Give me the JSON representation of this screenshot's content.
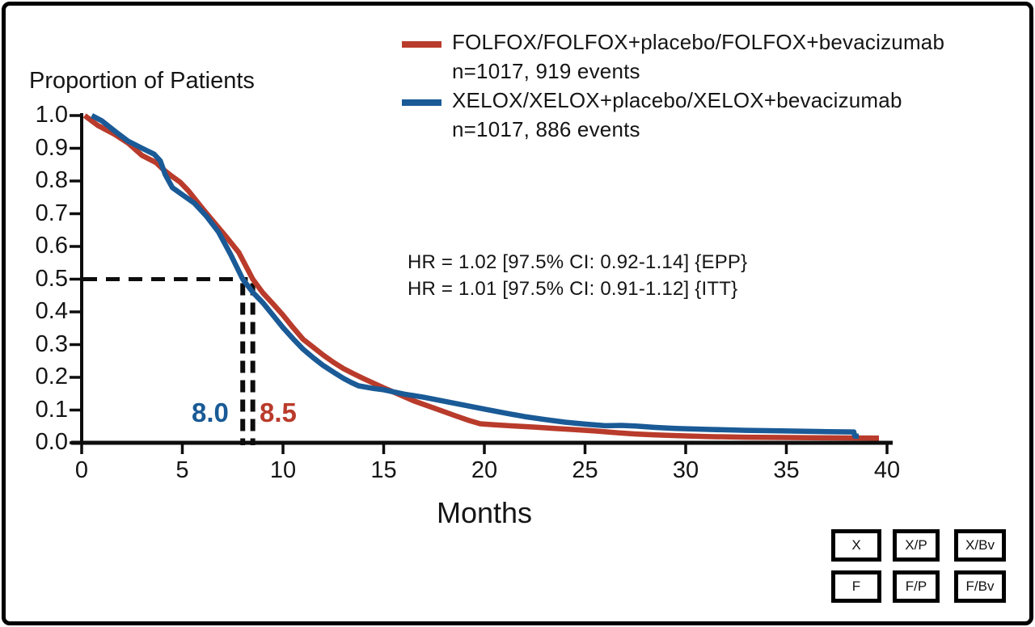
{
  "figure": {
    "y_axis_title": "Proportion of Patients",
    "x_axis_title": "Months"
  },
  "legend": {
    "items": [
      {
        "label": "FOLFOX/FOLFOX+placebo/FOLFOX+bevacizumab",
        "sub": "n=1017, 919 events",
        "color": "#b93b2b"
      },
      {
        "label": "XELOX/XELOX+placebo/XELOX+bevacizumab",
        "sub": "n=1017, 886 events",
        "color": "#1a5a96"
      }
    ]
  },
  "annotations": {
    "hr_line1": "HR = 1.02 [97.5% CI: 0.92-1.14] {EPP}",
    "hr_line2": "HR = 1.01 [97.5% CI: 0.91-1.12] {ITT}",
    "median_xelox": "8.0",
    "median_folfox": "8.5"
  },
  "treatment_boxes": {
    "row1": [
      "X",
      "X/P",
      "X/Bv"
    ],
    "row2": [
      "F",
      "F/P",
      "F/Bv"
    ]
  },
  "chart_data": {
    "type": "line",
    "subtype": "kaplan-meier-survival",
    "title": "Proportion of Patients vs Months",
    "xlabel": "Months",
    "ylabel": "Proportion of Patients",
    "xlim": [
      0,
      40
    ],
    "ylim": [
      0.0,
      1.0
    ],
    "x_ticks": [
      0,
      5,
      10,
      15,
      20,
      25,
      30,
      35,
      40
    ],
    "y_ticks": [
      "1.0",
      "0.9",
      "0.8",
      "0.7",
      "0.6",
      "0.5",
      "0.4",
      "0.3",
      "0.2",
      "0.1",
      "0.0"
    ],
    "grid": false,
    "legend_position": "top-right",
    "medians": {
      "y": 0.5,
      "xelox_months": 8.0,
      "folfox_months": 8.5
    },
    "series": [
      {
        "name": "FOLFOX/FOLFOX+placebo/FOLFOX+bevacizumab",
        "n": 1017,
        "events": 919,
        "color": "#b93b2b",
        "median_months": 8.5,
        "points": [
          [
            0.15,
            1.0
          ],
          [
            0.8,
            0.97
          ],
          [
            1.6,
            0.944
          ],
          [
            2.3,
            0.916
          ],
          [
            3.0,
            0.878
          ],
          [
            3.7,
            0.856
          ],
          [
            4.0,
            0.838
          ],
          [
            4.4,
            0.818
          ],
          [
            4.9,
            0.796
          ],
          [
            5.3,
            0.77
          ],
          [
            6.0,
            0.716
          ],
          [
            6.6,
            0.672
          ],
          [
            7.2,
            0.628
          ],
          [
            7.8,
            0.582
          ],
          [
            8.5,
            0.5
          ],
          [
            9.0,
            0.458
          ],
          [
            9.5,
            0.425
          ],
          [
            10.0,
            0.39
          ],
          [
            10.5,
            0.352
          ],
          [
            11.0,
            0.316
          ],
          [
            11.5,
            0.292
          ],
          [
            12.0,
            0.268
          ],
          [
            12.5,
            0.246
          ],
          [
            13.0,
            0.227
          ],
          [
            13.5,
            0.211
          ],
          [
            14.0,
            0.196
          ],
          [
            14.5,
            0.182
          ],
          [
            15.0,
            0.168
          ],
          [
            15.6,
            0.152
          ],
          [
            16.5,
            0.128
          ],
          [
            17.5,
            0.106
          ],
          [
            18.5,
            0.084
          ],
          [
            19.3,
            0.067
          ],
          [
            19.8,
            0.058
          ],
          [
            20.5,
            0.055
          ],
          [
            21.5,
            0.051
          ],
          [
            22.5,
            0.048
          ],
          [
            23.5,
            0.044
          ],
          [
            24.5,
            0.04
          ],
          [
            25.5,
            0.036
          ],
          [
            26.5,
            0.031
          ],
          [
            27.5,
            0.027
          ],
          [
            28.5,
            0.024
          ],
          [
            29.5,
            0.022
          ],
          [
            31.0,
            0.019
          ],
          [
            33.0,
            0.017
          ],
          [
            35.0,
            0.016
          ],
          [
            37.0,
            0.015
          ],
          [
            39.6,
            0.014
          ]
        ]
      },
      {
        "name": "XELOX/XELOX+placebo/XELOX+bevacizumab",
        "n": 1017,
        "events": 886,
        "color": "#1a5a96",
        "median_months": 8.0,
        "points": [
          [
            0.5,
            1.0
          ],
          [
            1.0,
            0.984
          ],
          [
            1.7,
            0.95
          ],
          [
            2.3,
            0.922
          ],
          [
            3.0,
            0.9
          ],
          [
            3.6,
            0.882
          ],
          [
            3.9,
            0.862
          ],
          [
            4.15,
            0.82
          ],
          [
            4.5,
            0.78
          ],
          [
            5.0,
            0.758
          ],
          [
            5.6,
            0.732
          ],
          [
            6.2,
            0.692
          ],
          [
            6.8,
            0.644
          ],
          [
            7.4,
            0.575
          ],
          [
            8.0,
            0.5
          ],
          [
            8.5,
            0.46
          ],
          [
            9.0,
            0.428
          ],
          [
            9.5,
            0.39
          ],
          [
            10.0,
            0.352
          ],
          [
            10.5,
            0.318
          ],
          [
            11.0,
            0.286
          ],
          [
            11.5,
            0.26
          ],
          [
            12.0,
            0.236
          ],
          [
            12.5,
            0.216
          ],
          [
            13.0,
            0.197
          ],
          [
            13.4,
            0.184
          ],
          [
            13.75,
            0.174
          ],
          [
            14.5,
            0.166
          ],
          [
            15.0,
            0.162
          ],
          [
            16.0,
            0.149
          ],
          [
            17.0,
            0.139
          ],
          [
            18.0,
            0.127
          ],
          [
            19.0,
            0.115
          ],
          [
            20.0,
            0.103
          ],
          [
            21.0,
            0.091
          ],
          [
            22.0,
            0.08
          ],
          [
            23.0,
            0.071
          ],
          [
            24.0,
            0.063
          ],
          [
            25.0,
            0.057
          ],
          [
            26.0,
            0.052
          ],
          [
            26.8,
            0.053
          ],
          [
            27.5,
            0.051
          ],
          [
            28.5,
            0.047
          ],
          [
            29.5,
            0.044
          ],
          [
            31.0,
            0.041
          ],
          [
            33.0,
            0.038
          ],
          [
            35.0,
            0.036
          ],
          [
            37.0,
            0.034
          ],
          [
            38.35,
            0.033
          ],
          [
            38.4,
            0.02
          ],
          [
            38.6,
            0.02
          ]
        ]
      }
    ]
  }
}
